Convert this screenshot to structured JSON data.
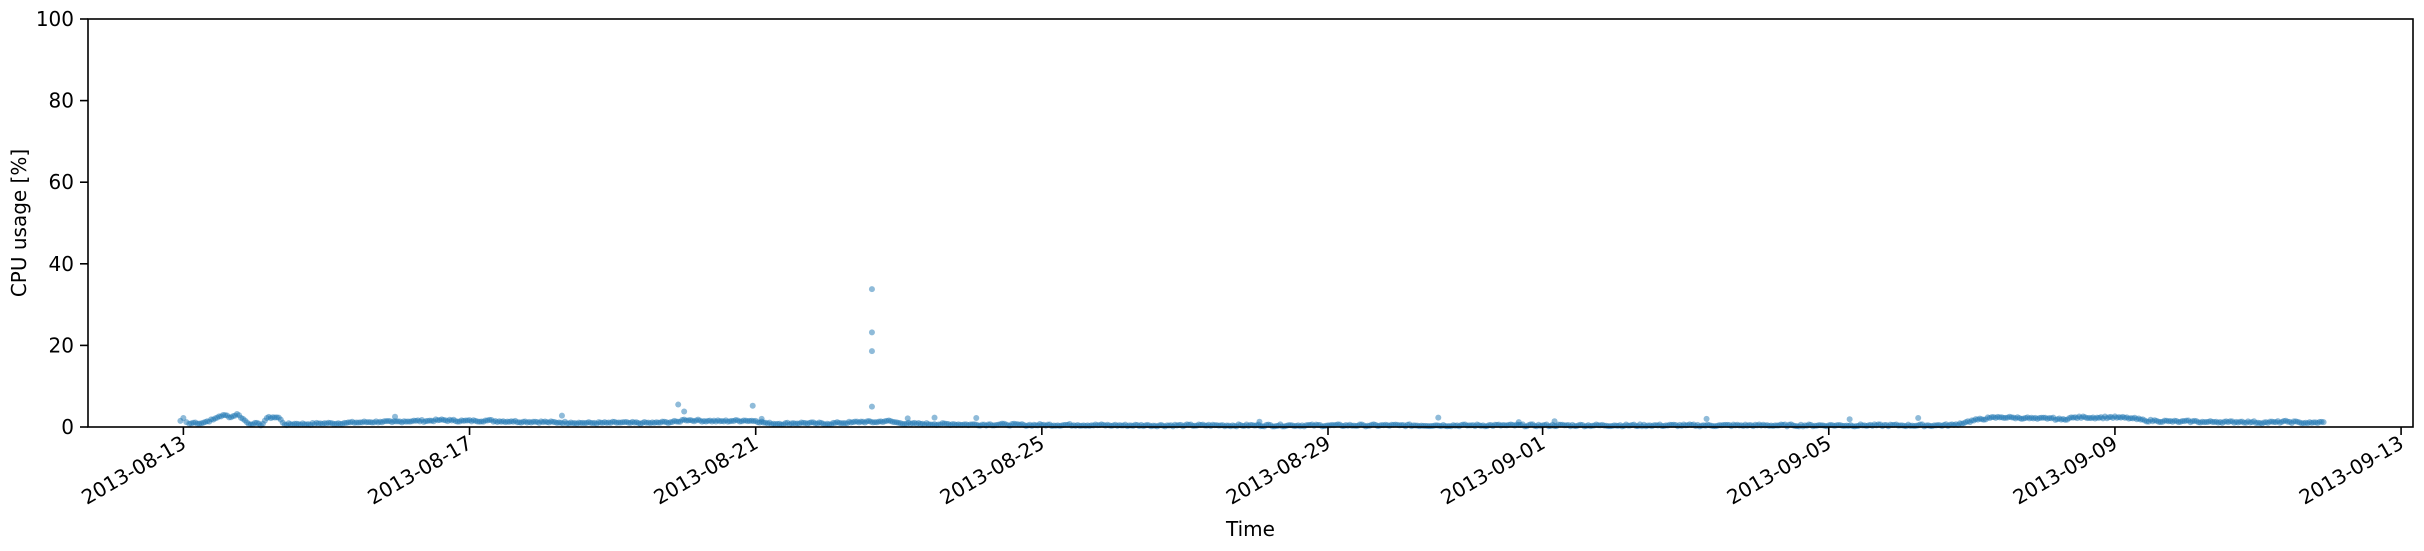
{
  "chart_data": {
    "type": "scatter",
    "title": "",
    "xlabel": "Time",
    "ylabel": "CPU usage [%]",
    "x_axis_type": "date",
    "xlim": [
      "2013-08-11T16:00",
      "2013-09-13T04:00"
    ],
    "ylim": [
      0,
      100
    ],
    "y_ticks": [
      0,
      20,
      40,
      60,
      80,
      100
    ],
    "x_ticks": [
      "2013-08-13",
      "2013-08-17",
      "2013-08-21",
      "2013-08-25",
      "2013-08-29",
      "2013-09-01",
      "2013-09-05",
      "2013-09-09",
      "2013-09-13"
    ],
    "grid": false,
    "legend": "none",
    "marker_color": "#1f77b4",
    "marker_alpha": 0.5,
    "series": [
      {
        "points": [
          [
            "2013-08-12T23:00",
            1.5
          ],
          [
            "2013-08-13T00:00",
            2.2
          ],
          [
            "2013-08-13T01:00",
            1.2
          ],
          [
            "2013-08-13T02:00",
            0.8
          ],
          [
            "2013-08-13T04:00",
            1.1
          ],
          [
            "2013-08-13T06:00",
            0.9
          ],
          [
            "2013-08-13T08:00",
            1.4
          ],
          [
            "2013-08-13T10:00",
            1.8
          ],
          [
            "2013-08-13T12:00",
            2.6
          ],
          [
            "2013-08-13T14:00",
            2.9
          ],
          [
            "2013-08-13T16:00",
            2.4
          ],
          [
            "2013-08-13T18:00",
            3.2
          ],
          [
            "2013-08-13T20:00",
            2.0
          ],
          [
            "2013-08-13T22:00",
            0.7
          ],
          [
            "2013-08-14T00:00",
            1.0
          ],
          [
            "2013-08-14T02:00",
            0.4
          ],
          [
            "2013-08-14T04:00",
            2.2
          ],
          [
            "2013-08-14T06:00",
            2.4
          ],
          [
            "2013-08-14T08:00",
            2.3
          ],
          [
            "2013-08-14T10:00",
            0.6
          ],
          [
            "2013-08-14T14:00",
            0.8
          ],
          [
            "2013-08-14T18:00",
            0.7
          ],
          [
            "2013-08-14T22:00",
            0.9
          ],
          [
            "2013-08-15T02:00",
            0.9
          ],
          [
            "2013-08-15T06:00",
            1.0
          ],
          [
            "2013-08-15T10:00",
            1.1
          ],
          [
            "2013-08-15T14:00",
            1.2
          ],
          [
            "2013-08-15T18:00",
            1.3
          ],
          [
            "2013-08-15T22:00",
            1.2
          ],
          [
            "2013-08-16T02:00",
            1.4
          ],
          [
            "2013-08-16T06:00",
            1.5
          ],
          [
            "2013-08-16T10:00",
            1.5
          ],
          [
            "2013-08-16T14:00",
            1.7
          ],
          [
            "2013-08-16T18:00",
            1.6
          ],
          [
            "2013-08-16T22:00",
            1.5
          ],
          [
            "2013-08-17T02:00",
            1.5
          ],
          [
            "2013-08-17T06:00",
            1.6
          ],
          [
            "2013-08-17T10:00",
            1.4
          ],
          [
            "2013-08-17T14:00",
            1.4
          ],
          [
            "2013-08-17T18:00",
            1.3
          ],
          [
            "2013-08-17T22:00",
            1.3
          ],
          [
            "2013-08-18T02:00",
            1.2
          ],
          [
            "2013-08-18T06:00",
            1.1
          ],
          [
            "2013-08-18T10:00",
            1.1
          ],
          [
            "2013-08-18T14:00",
            1.0
          ],
          [
            "2013-08-18T18:00",
            1.0
          ],
          [
            "2013-08-18T22:00",
            1.0
          ],
          [
            "2013-08-19T02:00",
            1.1
          ],
          [
            "2013-08-19T06:00",
            1.0
          ],
          [
            "2013-08-19T10:00",
            1.0
          ],
          [
            "2013-08-19T14:00",
            1.0
          ],
          [
            "2013-08-19T18:00",
            1.2
          ],
          [
            "2013-08-19T22:00",
            1.3
          ],
          [
            "2013-08-20T00:00",
            1.8
          ],
          [
            "2013-08-20T04:00",
            1.6
          ],
          [
            "2013-08-20T08:00",
            1.5
          ],
          [
            "2013-08-20T12:00",
            1.4
          ],
          [
            "2013-08-20T16:00",
            1.5
          ],
          [
            "2013-08-20T20:00",
            1.6
          ],
          [
            "2013-08-21T00:00",
            1.5
          ],
          [
            "2013-08-21T04:00",
            0.9
          ],
          [
            "2013-08-21T08:00",
            0.8
          ],
          [
            "2013-08-21T12:00",
            0.9
          ],
          [
            "2013-08-21T16:00",
            1.0
          ],
          [
            "2013-08-21T20:00",
            0.9
          ],
          [
            "2013-08-22T00:00",
            0.8
          ],
          [
            "2013-08-22T04:00",
            1.0
          ],
          [
            "2013-08-22T08:00",
            1.1
          ],
          [
            "2013-08-22T12:00",
            1.3
          ],
          [
            "2013-08-22T16:00",
            1.2
          ],
          [
            "2013-08-22T20:00",
            1.5
          ],
          [
            "2013-08-23T00:00",
            1.0
          ],
          [
            "2013-08-23T04:00",
            0.8
          ],
          [
            "2013-08-23T08:00",
            0.8
          ],
          [
            "2013-08-23T12:00",
            0.7
          ],
          [
            "2013-08-23T18:00",
            0.7
          ],
          [
            "2013-08-24T00:00",
            0.6
          ],
          [
            "2013-08-24T06:00",
            0.6
          ],
          [
            "2013-08-24T12:00",
            0.6
          ],
          [
            "2013-08-24T18:00",
            0.5
          ],
          [
            "2013-08-25T00:00",
            0.5
          ],
          [
            "2013-08-25T12:00",
            0.5
          ],
          [
            "2013-08-26T00:00",
            0.4
          ],
          [
            "2013-08-26T12:00",
            0.4
          ],
          [
            "2013-08-27T00:00",
            0.4
          ],
          [
            "2013-08-27T12:00",
            0.4
          ],
          [
            "2013-08-28T00:00",
            0.4
          ],
          [
            "2013-08-28T12:00",
            0.4
          ],
          [
            "2013-08-29T00:00",
            0.4
          ],
          [
            "2013-08-29T12:00",
            0.4
          ],
          [
            "2013-08-30T00:00",
            0.4
          ],
          [
            "2013-08-30T12:00",
            0.4
          ],
          [
            "2013-08-31T00:00",
            0.4
          ],
          [
            "2013-08-31T12:00",
            0.4
          ],
          [
            "2013-09-01T00:00",
            0.4
          ],
          [
            "2013-09-01T12:00",
            0.4
          ],
          [
            "2013-09-02T00:00",
            0.4
          ],
          [
            "2013-09-02T12:00",
            0.4
          ],
          [
            "2013-09-03T00:00",
            0.4
          ],
          [
            "2013-09-03T12:00",
            0.4
          ],
          [
            "2013-09-04T00:00",
            0.4
          ],
          [
            "2013-09-04T12:00",
            0.4
          ],
          [
            "2013-09-05T00:00",
            0.4
          ],
          [
            "2013-09-05T12:00",
            0.4
          ],
          [
            "2013-09-06T00:00",
            0.4
          ],
          [
            "2013-09-06T12:00",
            0.4
          ],
          [
            "2013-09-06T18:00",
            0.5
          ],
          [
            "2013-09-06T22:00",
            1.2
          ],
          [
            "2013-09-07T02:00",
            1.8
          ],
          [
            "2013-09-07T06:00",
            2.2
          ],
          [
            "2013-09-07T10:00",
            2.4
          ],
          [
            "2013-09-07T14:00",
            2.3
          ],
          [
            "2013-09-07T18:00",
            2.2
          ],
          [
            "2013-09-07T22:00",
            2.0
          ],
          [
            "2013-09-08T02:00",
            2.2
          ],
          [
            "2013-09-08T06:00",
            1.8
          ],
          [
            "2013-09-08T10:00",
            2.3
          ],
          [
            "2013-09-08T14:00",
            2.4
          ],
          [
            "2013-09-08T18:00",
            2.3
          ],
          [
            "2013-09-08T22:00",
            2.4
          ],
          [
            "2013-09-09T02:00",
            2.3
          ],
          [
            "2013-09-09T06:00",
            2.1
          ],
          [
            "2013-09-09T10:00",
            1.6
          ],
          [
            "2013-09-09T14:00",
            1.5
          ],
          [
            "2013-09-09T18:00",
            1.4
          ],
          [
            "2013-09-09T22:00",
            1.3
          ],
          [
            "2013-09-10T02:00",
            1.4
          ],
          [
            "2013-09-10T06:00",
            1.2
          ],
          [
            "2013-09-10T10:00",
            1.3
          ],
          [
            "2013-09-10T14:00",
            1.2
          ],
          [
            "2013-09-10T18:00",
            1.3
          ],
          [
            "2013-09-10T22:00",
            1.2
          ],
          [
            "2013-09-11T02:00",
            1.1
          ],
          [
            "2013-09-11T06:00",
            1.2
          ],
          [
            "2013-09-11T10:00",
            1.3
          ],
          [
            "2013-09-11T14:00",
            1.1
          ],
          [
            "2013-09-11T18:00",
            1.0
          ],
          [
            "2013-09-11T22:00",
            1.2
          ]
        ]
      },
      {
        "points": [
          [
            "2013-08-19T22:00",
            5.5
          ],
          [
            "2013-08-20T00:00",
            3.8
          ],
          [
            "2013-08-20T23:00",
            5.2
          ],
          [
            "2013-08-22T15:00",
            33.8
          ],
          [
            "2013-08-22T15:00",
            23.2
          ],
          [
            "2013-08-22T15:00",
            18.6
          ],
          [
            "2013-08-22T15:00",
            5.0
          ],
          [
            "2013-08-18T07:00",
            2.8
          ],
          [
            "2013-08-15T23:00",
            2.5
          ],
          [
            "2013-08-23T03:00",
            2.1
          ],
          [
            "2013-08-23T12:00",
            2.3
          ],
          [
            "2013-08-24T02:00",
            2.2
          ],
          [
            "2013-08-30T13:00",
            2.3
          ],
          [
            "2013-09-03T07:00",
            2.0
          ],
          [
            "2013-09-05T07:00",
            1.9
          ],
          [
            "2013-09-06T06:00",
            2.2
          ],
          [
            "2013-08-21T02:00",
            2.0
          ],
          [
            "2013-08-28T01:00",
            1.3
          ],
          [
            "2013-08-31T16:00",
            1.2
          ],
          [
            "2013-09-01T04:00",
            1.4
          ]
        ]
      }
    ]
  }
}
